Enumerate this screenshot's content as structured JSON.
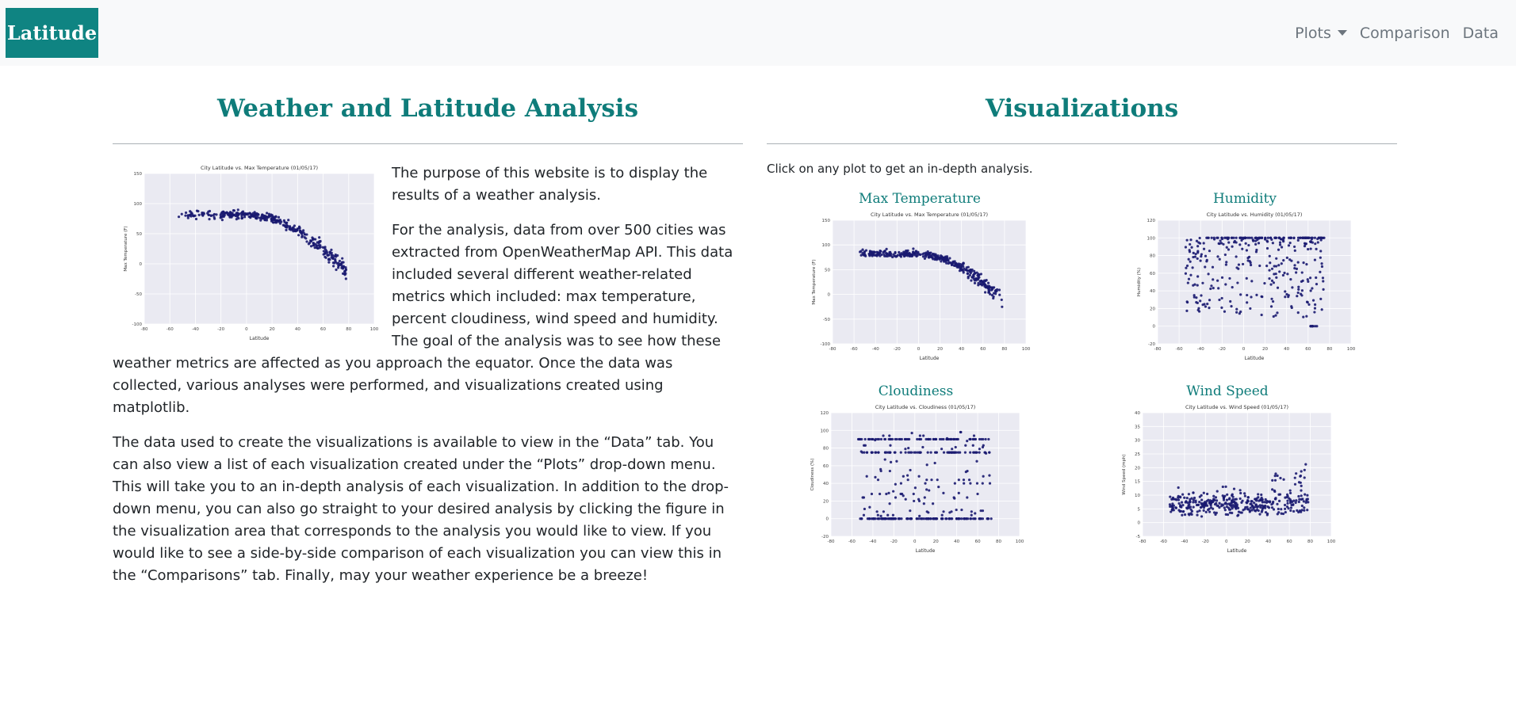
{
  "navbar": {
    "brand": "Latitude",
    "links": {
      "plots": "Plots",
      "comparison": "Comparison",
      "data": "Data"
    }
  },
  "left": {
    "title": "Weather and Latitude Analysis",
    "p1": "The purpose of this website is to display the results of a weather analysis.",
    "p2": "For the analysis, data from over 500 cities was extracted from OpenWeatherMap API. This data included several different weather-related metrics which included: max temperature, percent cloudiness, wind speed and humidity. The goal of the analysis was to see how these weather metrics are affected as you approach the equator. Once the data was collected, various analyses were performed, and visualizations created using matplotlib.",
    "p3": "The data used to create the visualizations is available to view in the “Data” tab. You can also view a list of each visualization created under the “Plots” drop-down menu. This will take you to an in-depth analysis of each visualization. In addition to the drop-down menu, you can also go straight to your desired analysis by clicking the figure in the visualization area that corresponds to the analysis you would like to view. If you would like to see a side-by-side comparison of each visualization you can view this in the “Comparisons” tab. Finally, may your weather experience be a breeze!"
  },
  "right": {
    "title": "Visualizations",
    "hint": "Click on any plot to get an in-depth analysis.",
    "cards": {
      "max_temp": "Max Temperature",
      "humidity": "Humidity",
      "cloudiness": "Cloudiness",
      "wind": "Wind Speed"
    }
  },
  "colors": {
    "brand": "#0f8482",
    "heading": "#0f7c7a",
    "point": "#191970",
    "plot_bg": "#eaeaf2"
  },
  "chart_data": [
    {
      "type": "scatter",
      "title": "City Latitude vs. Max Temperature (01/05/17)",
      "xlabel": "Latitude",
      "ylabel": "Max Temperature (F)",
      "xlim": [
        -80,
        100
      ],
      "ylim": [
        -100,
        150
      ],
      "xticks": [
        -80,
        -60,
        -40,
        -20,
        0,
        20,
        40,
        60,
        80,
        100
      ],
      "yticks": [
        -100,
        -50,
        0,
        50,
        100,
        150
      ],
      "grid": true,
      "pattern": "temp"
    },
    {
      "type": "scatter",
      "title": "City Latitude vs. Humidity (01/05/17)",
      "xlabel": "Latitude",
      "ylabel": "Humidity (%)",
      "xlim": [
        -80,
        100
      ],
      "ylim": [
        -20,
        120
      ],
      "xticks": [
        -80,
        -60,
        -40,
        -20,
        0,
        20,
        40,
        60,
        80,
        100
      ],
      "yticks": [
        -20,
        0,
        20,
        40,
        60,
        80,
        100,
        120
      ],
      "grid": true,
      "pattern": "humidity"
    },
    {
      "type": "scatter",
      "title": "City Latitude vs. Cloudiness (01/05/17)",
      "xlabel": "Latitude",
      "ylabel": "Cloudiness (%)",
      "xlim": [
        -80,
        100
      ],
      "ylim": [
        -20,
        120
      ],
      "xticks": [
        -80,
        -60,
        -40,
        -20,
        0,
        20,
        40,
        60,
        80,
        100
      ],
      "yticks": [
        -20,
        0,
        20,
        40,
        60,
        80,
        100,
        120
      ],
      "grid": true,
      "pattern": "cloud"
    },
    {
      "type": "scatter",
      "title": "City Latitude vs. Wind Speed (01/05/17)",
      "xlabel": "Latitude",
      "ylabel": "Wind Speed (mph)",
      "xlim": [
        -80,
        100
      ],
      "ylim": [
        -5,
        40
      ],
      "xticks": [
        -80,
        -60,
        -40,
        -20,
        0,
        20,
        40,
        60,
        80,
        100
      ],
      "yticks": [
        -5,
        0,
        5,
        10,
        15,
        20,
        25,
        30,
        35,
        40
      ],
      "grid": true,
      "pattern": "wind"
    }
  ]
}
